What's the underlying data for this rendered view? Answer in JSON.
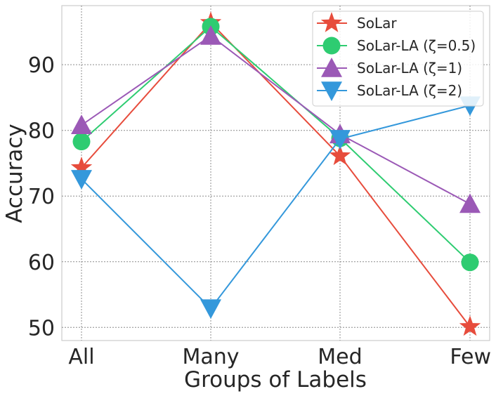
{
  "chart_data": {
    "type": "line",
    "title": "",
    "xlabel": "Groups of Labels",
    "ylabel": "Accuracy",
    "categories": [
      "All",
      "Many",
      "Med",
      "Few"
    ],
    "ylim": [
      48,
      99
    ],
    "yticks": [
      50,
      60,
      70,
      80,
      90
    ],
    "grid": true,
    "legend_position": "top-right",
    "series": [
      {
        "name": "SoLar",
        "color": "#e74c3c",
        "marker": "star",
        "values": [
          74.3,
          96.4,
          76.1,
          50.1
        ]
      },
      {
        "name": "SoLar-LA (ζ=0.5)",
        "color": "#2ecc71",
        "marker": "circle",
        "values": [
          78.3,
          95.8,
          78.8,
          59.9
        ]
      },
      {
        "name": "SoLar-LA (ζ=1)",
        "color": "#9b59b6",
        "marker": "triangle-up",
        "values": [
          80.8,
          94.4,
          79.4,
          68.8
        ]
      },
      {
        "name": "SoLar-LA (ζ=2)",
        "color": "#3498db",
        "marker": "triangle-down",
        "values": [
          72.6,
          52.9,
          78.7,
          83.8
        ]
      }
    ]
  }
}
